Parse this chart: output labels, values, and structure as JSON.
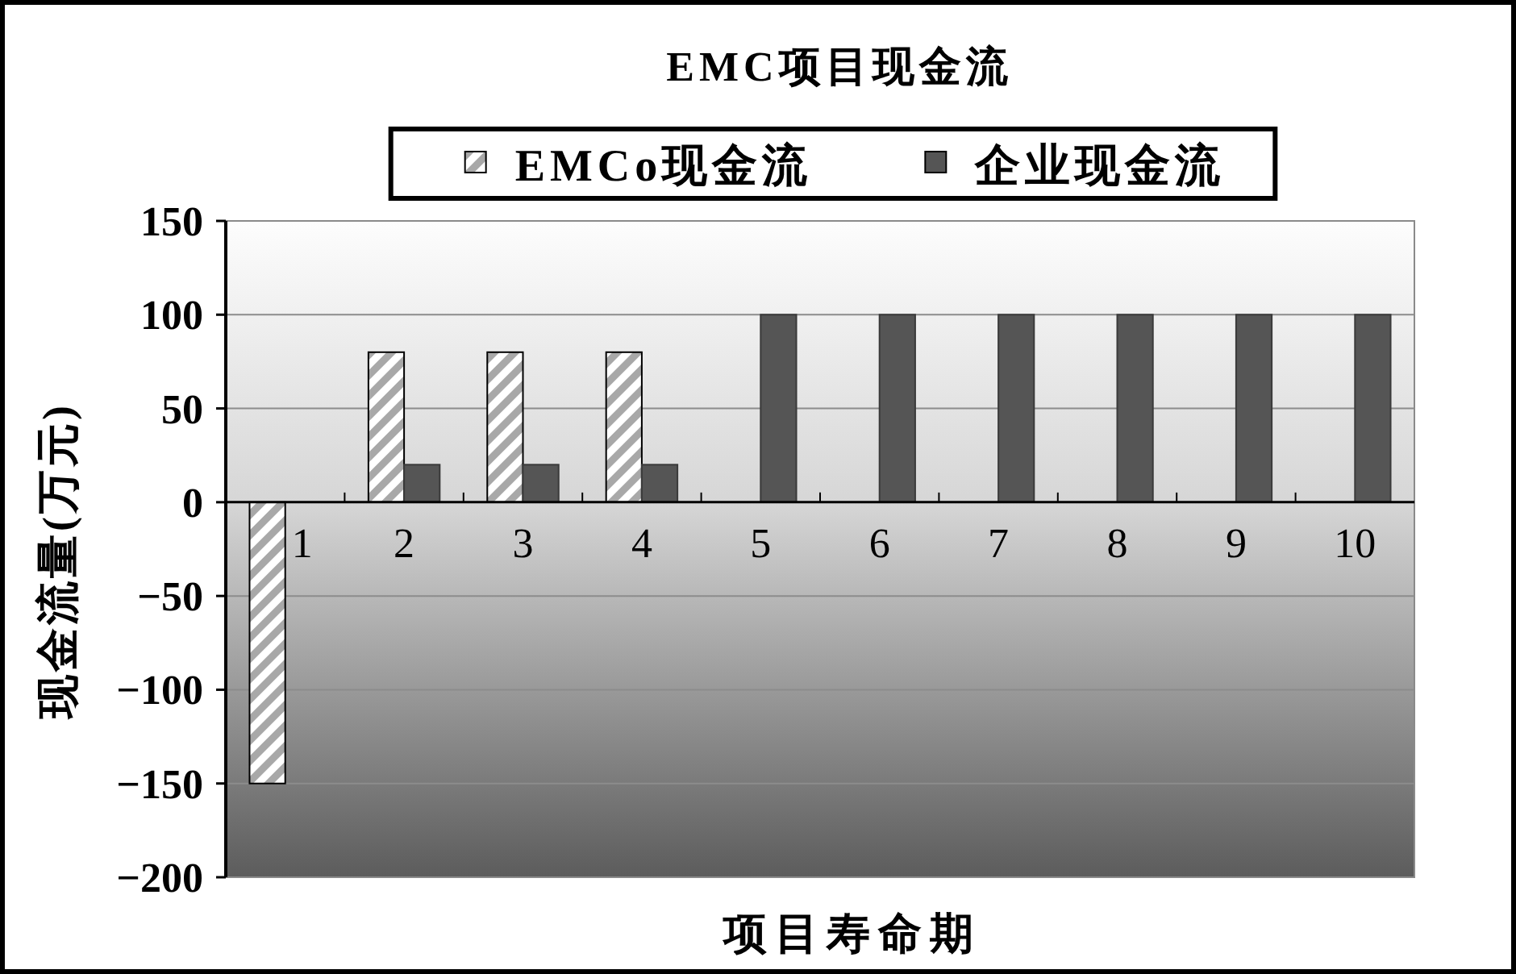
{
  "chart_data": {
    "type": "bar",
    "title": "EMC项目现金流",
    "xlabel": "项目寿命期",
    "ylabel": "现金流量(万元)",
    "categories": [
      "1",
      "2",
      "3",
      "4",
      "5",
      "6",
      "7",
      "8",
      "9",
      "10"
    ],
    "series": [
      {
        "name": "EMCo现金流",
        "color": "#a8a8a8",
        "values": [
          -150,
          80,
          80,
          80,
          null,
          null,
          null,
          null,
          null,
          null
        ]
      },
      {
        "name": "企业现金流",
        "color": "#555555",
        "values": [
          null,
          20,
          20,
          20,
          100,
          100,
          100,
          100,
          100,
          100
        ]
      }
    ],
    "ylim": [
      -200,
      150
    ],
    "yticks": [
      -200,
      -150,
      -100,
      -50,
      0,
      50,
      100,
      150
    ],
    "grid": "y",
    "legend": "top"
  }
}
